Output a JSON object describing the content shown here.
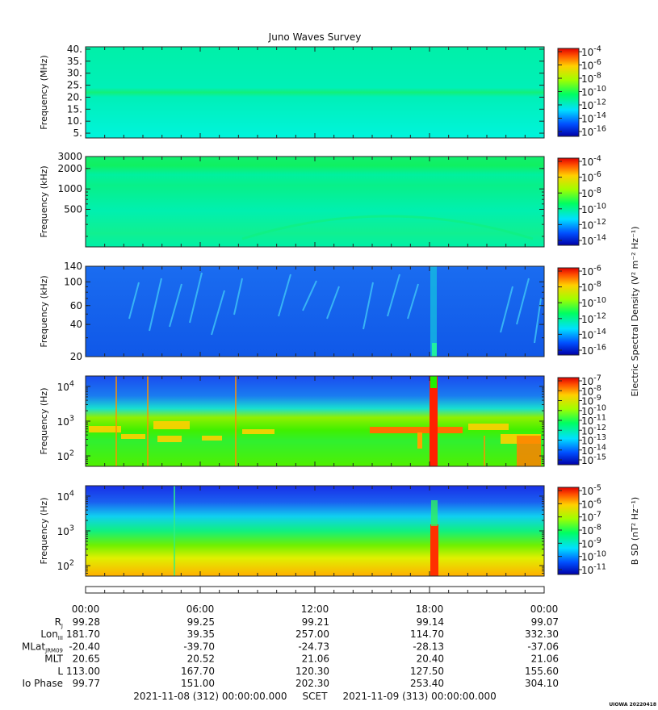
{
  "title": "Juno Waves Survey",
  "footer_credit": "UIOWA 20220418",
  "colors": {
    "frame": "#222222",
    "background": "#ffffff"
  },
  "chart_data": [
    {
      "type": "heatmap",
      "ylabel": "Frequency (MHz)",
      "yscale": "linear",
      "ylim": [
        3,
        41
      ],
      "yticks": [
        {
          "v": 40,
          "label": "40."
        },
        {
          "v": 35,
          "label": "35."
        },
        {
          "v": 30,
          "label": "30."
        },
        {
          "v": 25,
          "label": "25."
        },
        {
          "v": 20,
          "label": "20."
        },
        {
          "v": 15,
          "label": "15."
        },
        {
          "v": 10,
          "label": "10."
        },
        {
          "v": 5,
          "label": "5."
        }
      ],
      "colorbar": {
        "label": "",
        "ticks": [
          {
            "base": "10",
            "exp": "-4"
          },
          {
            "base": "10",
            "exp": "-6"
          },
          {
            "base": "10",
            "exp": "-8"
          },
          {
            "base": "10",
            "exp": "-10"
          },
          {
            "base": "10",
            "exp": "-12"
          },
          {
            "base": "10",
            "exp": "-14"
          },
          {
            "base": "10",
            "exp": "-16"
          }
        ]
      }
    },
    {
      "type": "heatmap",
      "ylabel": "Frequency (kHz)",
      "yscale": "log",
      "ylim": [
        140,
        3000
      ],
      "yticks": [
        {
          "v": 3000,
          "label": "3000"
        },
        {
          "v": 2000,
          "label": "2000"
        },
        {
          "v": 1000,
          "label": "1000"
        },
        {
          "v": 500,
          "label": "500"
        }
      ],
      "colorbar": {
        "label": "",
        "ticks": [
          {
            "base": "10",
            "exp": "-4"
          },
          {
            "base": "10",
            "exp": "-6"
          },
          {
            "base": "10",
            "exp": "-8"
          },
          {
            "base": "10",
            "exp": "-10"
          },
          {
            "base": "10",
            "exp": "-12"
          },
          {
            "base": "10",
            "exp": "-14"
          }
        ]
      }
    },
    {
      "type": "heatmap",
      "ylabel": "Frequency (kHz)",
      "yscale": "log",
      "ylim": [
        20,
        140
      ],
      "yticks": [
        {
          "v": 140,
          "label": "140"
        },
        {
          "v": 100,
          "label": "100"
        },
        {
          "v": 60,
          "label": "60"
        },
        {
          "v": 40,
          "label": "40"
        },
        {
          "v": 20,
          "label": "20"
        }
      ],
      "colorbar": {
        "label": "Electric Spectral Density (V² m⁻² Hz⁻¹)",
        "ticks": [
          {
            "base": "10",
            "exp": "-6"
          },
          {
            "base": "10",
            "exp": "-8"
          },
          {
            "base": "10",
            "exp": "-10"
          },
          {
            "base": "10",
            "exp": "-12"
          },
          {
            "base": "10",
            "exp": "-14"
          },
          {
            "base": "10",
            "exp": "-16"
          }
        ]
      }
    },
    {
      "type": "heatmap",
      "ylabel": "Frequency (Hz)",
      "yscale": "log",
      "ylim": [
        50,
        20000
      ],
      "yticks": [
        {
          "v": 10000,
          "base": "10",
          "exp": "4"
        },
        {
          "v": 1000,
          "base": "10",
          "exp": "3"
        },
        {
          "v": 100,
          "base": "10",
          "exp": "2"
        }
      ],
      "colorbar": {
        "label": "",
        "ticks": [
          {
            "base": "10",
            "exp": "-7"
          },
          {
            "base": "10",
            "exp": "-8"
          },
          {
            "base": "10",
            "exp": "-9"
          },
          {
            "base": "10",
            "exp": "-10"
          },
          {
            "base": "10",
            "exp": "-11"
          },
          {
            "base": "10",
            "exp": "-12"
          },
          {
            "base": "10",
            "exp": "-13"
          },
          {
            "base": "10",
            "exp": "-14"
          },
          {
            "base": "10",
            "exp": "-15"
          }
        ]
      }
    },
    {
      "type": "heatmap",
      "ylabel": "Frequency (Hz)",
      "yscale": "log",
      "ylim": [
        50,
        20000
      ],
      "yticks": [
        {
          "v": 10000,
          "base": "10",
          "exp": "4"
        },
        {
          "v": 1000,
          "base": "10",
          "exp": "3"
        },
        {
          "v": 100,
          "base": "10",
          "exp": "2"
        }
      ],
      "colorbar": {
        "label": "B SD (nT² Hz⁻¹)",
        "ticks": [
          {
            "base": "10",
            "exp": "-5"
          },
          {
            "base": "10",
            "exp": "-6"
          },
          {
            "base": "10",
            "exp": "-7"
          },
          {
            "base": "10",
            "exp": "-8"
          },
          {
            "base": "10",
            "exp": "-9"
          },
          {
            "base": "10",
            "exp": "-10"
          },
          {
            "base": "10",
            "exp": "-11"
          }
        ]
      }
    }
  ],
  "ephemeris": {
    "time_labels": [
      "00:00",
      "06:00",
      "12:00",
      "18:00",
      "00:00"
    ],
    "rows": [
      {
        "label": "R",
        "sub": "J",
        "values": [
          "99.28",
          "99.25",
          "99.21",
          "99.14",
          "99.07"
        ]
      },
      {
        "label": "Lon",
        "sub": "III",
        "values": [
          "181.70",
          "39.35",
          "257.00",
          "114.70",
          "332.30"
        ]
      },
      {
        "label": "MLat",
        "sub": "JRM09",
        "values": [
          "-20.40",
          "-39.70",
          "-24.73",
          "-28.13",
          "-37.06"
        ]
      },
      {
        "label": "MLT",
        "sub": "",
        "values": [
          "20.65",
          "20.52",
          "21.06",
          "20.40",
          "21.06"
        ]
      },
      {
        "label": "L",
        "sub": "",
        "values": [
          "113.00",
          "167.70",
          "120.30",
          "127.50",
          "155.60"
        ]
      },
      {
        "label": "Io Phase",
        "sub": "",
        "values": [
          "99.77",
          "151.00",
          "202.30",
          "253.40",
          "304.10"
        ]
      }
    ],
    "time_range": "2021-11-08 (312) 00:00:00.000     SCET     2021-11-09 (313) 00:00:00.000"
  }
}
